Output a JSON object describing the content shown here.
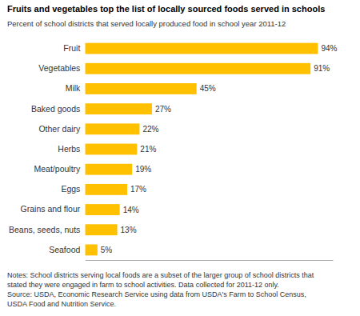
{
  "chart_data": {
    "type": "bar",
    "orientation": "horizontal",
    "title": "Fruits and vegetables top the list of locally sourced foods served in schools",
    "subtitle": "Percent of school districts that served locally produced food in school year 2011-12",
    "annotations": [
      "Notes: School districts serving local foods are a subset of the larger group of school districts that",
      "stated they were engaged in farm to school activities. Data collected for 2011-12 only.",
      "Source: USDA, Economic Research Service using data from USDA's Farm to School Census,",
      "USDA Food and Nutrition Service."
    ],
    "categories": [
      "Seafood",
      "Beans, seeds, nuts",
      "Grains and flour",
      "Eggs",
      "Meat/poultry",
      "Herbs",
      "Other dairy",
      "Baked goods",
      "Milk",
      "Vegetables",
      "Fruit"
    ],
    "values": [
      5,
      13,
      14,
      17,
      19,
      21,
      22,
      27,
      45,
      91,
      94
    ],
    "value_labels": [
      "5%",
      "13%",
      "14%",
      "17%",
      "19%",
      "21%",
      "22%",
      "27%",
      "45%",
      "91%",
      "94%"
    ],
    "data_labels": true,
    "color": "#FFC000",
    "xlim": [
      0,
      100
    ],
    "grid": false,
    "tick_labels": "y"
  }
}
